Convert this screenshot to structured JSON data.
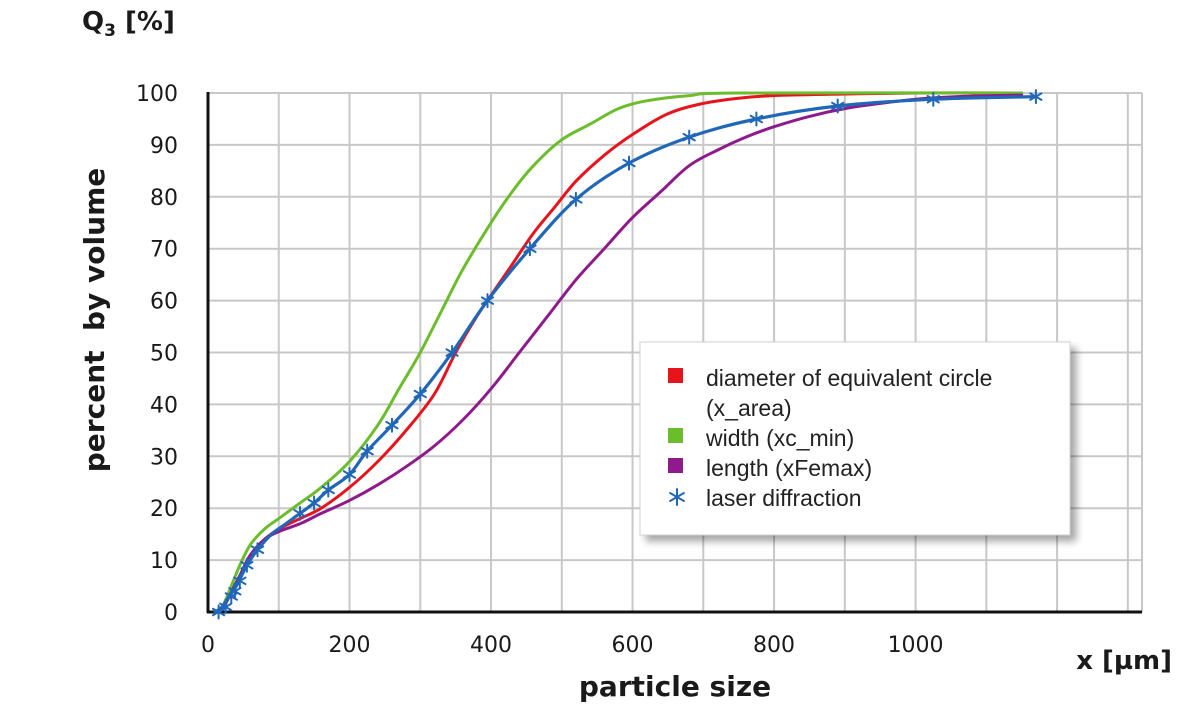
{
  "chart_data": {
    "type": "line",
    "title": "",
    "xlabel": "particle size",
    "ylabel": "percent  by volume",
    "x_unit_label": "x [µm]",
    "y_unit_label": "Q3 [%]",
    "y_unit_main": "Q",
    "y_unit_sub": "3",
    "y_unit_rest": " [%]",
    "xlim": [
      0,
      1320
    ],
    "ylim": [
      0,
      100
    ],
    "x_ticks": [
      0,
      200,
      400,
      600,
      800,
      1000
    ],
    "y_ticks": [
      0,
      10,
      20,
      30,
      40,
      50,
      60,
      70,
      80,
      90,
      100
    ],
    "grid": true,
    "legend_position": "center-right",
    "series": [
      {
        "name": "diameter of equivalent circle (x_area)",
        "legend_lines": [
          "diameter of equivalent circle",
          "(x_area)"
        ],
        "color": "#e8141b",
        "marker": "none",
        "points": [
          [
            10,
            0
          ],
          [
            20,
            0.5
          ],
          [
            30,
            3
          ],
          [
            45,
            7
          ],
          [
            60,
            11
          ],
          [
            80,
            14
          ],
          [
            100,
            16
          ],
          [
            130,
            18
          ],
          [
            160,
            20
          ],
          [
            200,
            24
          ],
          [
            240,
            29
          ],
          [
            280,
            35
          ],
          [
            320,
            42
          ],
          [
            350,
            50
          ],
          [
            380,
            57
          ],
          [
            400,
            61
          ],
          [
            430,
            67
          ],
          [
            460,
            73
          ],
          [
            490,
            78
          ],
          [
            520,
            83
          ],
          [
            560,
            88
          ],
          [
            600,
            92
          ],
          [
            650,
            96
          ],
          [
            700,
            98
          ],
          [
            750,
            99
          ],
          [
            800,
            99.5
          ],
          [
            900,
            99.8
          ],
          [
            1000,
            100
          ],
          [
            1150,
            100
          ]
        ]
      },
      {
        "name": "width (xc_min)",
        "legend_lines": [
          "width (xc_min)"
        ],
        "color": "#6cbd2c",
        "marker": "none",
        "points": [
          [
            10,
            0
          ],
          [
            20,
            1
          ],
          [
            30,
            4
          ],
          [
            45,
            9
          ],
          [
            60,
            13
          ],
          [
            80,
            16
          ],
          [
            100,
            18
          ],
          [
            130,
            21
          ],
          [
            160,
            24
          ],
          [
            200,
            29
          ],
          [
            240,
            36
          ],
          [
            270,
            43
          ],
          [
            300,
            50
          ],
          [
            330,
            58
          ],
          [
            360,
            66
          ],
          [
            400,
            75
          ],
          [
            430,
            81
          ],
          [
            460,
            86
          ],
          [
            500,
            91
          ],
          [
            540,
            94
          ],
          [
            580,
            97
          ],
          [
            620,
            98.5
          ],
          [
            680,
            99.5
          ],
          [
            750,
            100
          ],
          [
            1150,
            100
          ]
        ]
      },
      {
        "name": "length (xFemax)",
        "legend_lines": [
          "length (xFemax)"
        ],
        "color": "#8e1a8c",
        "marker": "none",
        "points": [
          [
            10,
            0
          ],
          [
            20,
            0.5
          ],
          [
            30,
            3
          ],
          [
            45,
            7
          ],
          [
            60,
            11
          ],
          [
            80,
            14
          ],
          [
            100,
            15.5
          ],
          [
            130,
            17
          ],
          [
            160,
            19
          ],
          [
            200,
            21.5
          ],
          [
            240,
            24.5
          ],
          [
            280,
            28
          ],
          [
            320,
            32
          ],
          [
            360,
            37
          ],
          [
            400,
            43
          ],
          [
            440,
            50
          ],
          [
            480,
            57
          ],
          [
            520,
            64
          ],
          [
            560,
            70
          ],
          [
            600,
            76
          ],
          [
            640,
            81
          ],
          [
            680,
            86
          ],
          [
            720,
            89
          ],
          [
            760,
            91.5
          ],
          [
            800,
            93.5
          ],
          [
            850,
            95.5
          ],
          [
            900,
            97
          ],
          [
            950,
            98
          ],
          [
            1000,
            98.8
          ],
          [
            1060,
            99.3
          ],
          [
            1150,
            99.6
          ]
        ]
      },
      {
        "name": "laser diffraction",
        "legend_lines": [
          "laser diffraction"
        ],
        "color": "#2067b8",
        "marker": "asterisk",
        "points": [
          [
            10,
            0
          ],
          [
            20,
            1
          ],
          [
            30,
            3
          ],
          [
            40,
            5
          ],
          [
            55,
            9
          ],
          [
            70,
            12
          ],
          [
            90,
            15
          ],
          [
            110,
            17
          ],
          [
            130,
            19
          ],
          [
            150,
            21
          ],
          [
            170,
            23.5
          ],
          [
            200,
            26.5
          ],
          [
            225,
            31
          ],
          [
            260,
            36
          ],
          [
            300,
            42
          ],
          [
            345,
            50
          ],
          [
            395,
            60
          ],
          [
            455,
            70
          ],
          [
            520,
            79.5
          ],
          [
            595,
            86.5
          ],
          [
            680,
            91.5
          ],
          [
            775,
            95
          ],
          [
            890,
            97.5
          ],
          [
            1025,
            98.8
          ],
          [
            1170,
            99.3
          ]
        ],
        "marker_points": [
          [
            15,
            0
          ],
          [
            25,
            1
          ],
          [
            33,
            3
          ],
          [
            38,
            4
          ],
          [
            45,
            6
          ],
          [
            55,
            9
          ],
          [
            70,
            12
          ],
          [
            130,
            19
          ],
          [
            150,
            21
          ],
          [
            170,
            23.5
          ],
          [
            200,
            26.5
          ],
          [
            225,
            31
          ],
          [
            260,
            36
          ],
          [
            300,
            42
          ],
          [
            345,
            50
          ],
          [
            395,
            60
          ],
          [
            455,
            70
          ],
          [
            520,
            79.5
          ],
          [
            595,
            86.5
          ],
          [
            680,
            91.5
          ],
          [
            775,
            95
          ],
          [
            890,
            97.5
          ],
          [
            1025,
            98.8
          ],
          [
            1170,
            99.3
          ]
        ]
      }
    ]
  }
}
